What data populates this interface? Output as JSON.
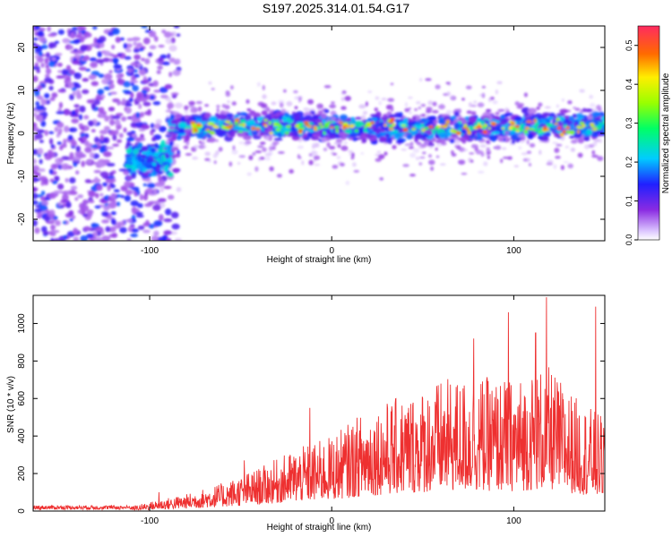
{
  "title": "S197.2025.314.01.54.G17",
  "chart_data": [
    {
      "type": "heatmap",
      "xlabel": "Height of straight line (km)",
      "ylabel": "Frequency (Hz)",
      "xlim": [
        -164,
        150
      ],
      "ylim": [
        -25,
        25
      ],
      "x_ticks": [
        -100,
        0,
        100
      ],
      "y_ticks": [
        -20,
        -10,
        0,
        10,
        20
      ],
      "x_tick_labels": [
        "-100",
        "0",
        "100"
      ],
      "y_tick_labels": [
        "-20",
        "-10",
        "0",
        "10",
        "20"
      ],
      "colorbar": {
        "label": "Normalized spectral amplitude",
        "range": [
          0,
          0.55
        ],
        "ticks": [
          "0.0",
          "0.1",
          "0.2",
          "0.3",
          "0.4",
          "0.5"
        ],
        "tick_values": [
          0,
          0.1,
          0.2,
          0.3,
          0.4,
          0.5
        ]
      },
      "description_regions": [
        {
          "x_from": -164,
          "x_to": -88,
          "freq_center": 0,
          "freq_spread": 25,
          "amplitude": 0.12
        },
        {
          "x_from": -112,
          "x_to": -88,
          "freq_center": -6,
          "freq_spread": 3,
          "amplitude": 0.2
        },
        {
          "x_from": -88,
          "x_to": 150,
          "freq_center": 1,
          "freq_spread": 4,
          "amplitude": 0.3
        }
      ]
    },
    {
      "type": "line",
      "xlabel": "Height of straight line (km)",
      "ylabel": "SNR (10 * v/v)",
      "xlim": [
        -164,
        150
      ],
      "ylim": [
        0,
        1150
      ],
      "x_ticks": [
        -100,
        0,
        100
      ],
      "y_ticks": [
        0,
        200,
        400,
        600,
        800,
        1000
      ],
      "x_tick_labels": [
        "-100",
        "0",
        "100"
      ],
      "y_tick_labels": [
        "0",
        "200",
        "400",
        "600",
        "800",
        "1000"
      ],
      "series": [
        {
          "name": "SNR",
          "color": "#ee3030",
          "envelope": [
            {
              "x": -164,
              "y": 20
            },
            {
              "x": -110,
              "y": 25
            },
            {
              "x": -95,
              "y": 60
            },
            {
              "x": -80,
              "y": 90
            },
            {
              "x": -60,
              "y": 150
            },
            {
              "x": -40,
              "y": 230
            },
            {
              "x": -20,
              "y": 330
            },
            {
              "x": 0,
              "y": 400
            },
            {
              "x": 20,
              "y": 550
            },
            {
              "x": 40,
              "y": 620
            },
            {
              "x": 60,
              "y": 700
            },
            {
              "x": 80,
              "y": 720
            },
            {
              "x": 100,
              "y": 700
            },
            {
              "x": 118,
              "y": 780
            },
            {
              "x": 135,
              "y": 600
            },
            {
              "x": 150,
              "y": 500
            }
          ],
          "peaks": [
            {
              "x": 118,
              "y": 1140
            },
            {
              "x": 145,
              "y": 1090
            },
            {
              "x": 97,
              "y": 1060
            },
            {
              "x": 112,
              "y": 950
            },
            {
              "x": 78,
              "y": 920
            },
            {
              "x": -12,
              "y": 550
            },
            {
              "x": -48,
              "y": 270
            },
            {
              "x": -95,
              "y": 100
            }
          ]
        }
      ]
    }
  ]
}
